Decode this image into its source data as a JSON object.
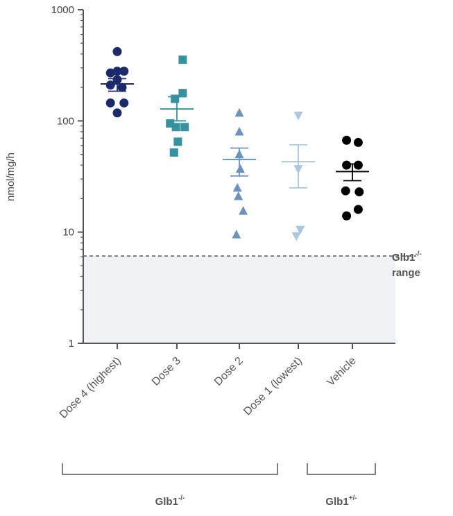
{
  "chart_data": {
    "type": "scatter",
    "title": "",
    "ylabel": "nmol/mg/h",
    "yscale": "log",
    "ylim": [
      1,
      1000
    ],
    "yticks": [
      "1",
      "10",
      "100",
      "1000"
    ],
    "categories": [
      "Dose 4 (highest)",
      "Dose 3",
      "Dose 2",
      "Dose 1 (lowest)",
      "Vehicle"
    ],
    "series": [
      {
        "name": "Dose 4 (highest)",
        "marker": "circle",
        "color": "#1b2a6b",
        "points": [
          {
            "dx": 0,
            "y": 420
          },
          {
            "dx": -0.35,
            "y": 270
          },
          {
            "dx": 0,
            "y": 280
          },
          {
            "dx": 0.35,
            "y": 280
          },
          {
            "dx": -0.35,
            "y": 210
          },
          {
            "dx": 0.25,
            "y": 200
          },
          {
            "dx": 0,
            "y": 235
          },
          {
            "dx": -0.35,
            "y": 145
          },
          {
            "dx": 0.35,
            "y": 145
          },
          {
            "dx": 0,
            "y": 118
          }
        ],
        "mean": 215,
        "sem_low": 185,
        "sem_high": 240
      },
      {
        "name": "Dose 3",
        "marker": "square",
        "color": "#35929e",
        "points": [
          {
            "dx": 0.3,
            "y": 355
          },
          {
            "dx": 0.3,
            "y": 178
          },
          {
            "dx": -0.1,
            "y": 158
          },
          {
            "dx": -0.35,
            "y": 95
          },
          {
            "dx": -0.05,
            "y": 88
          },
          {
            "dx": 0.4,
            "y": 88
          },
          {
            "dx": 0.05,
            "y": 65
          },
          {
            "dx": -0.15,
            "y": 52
          }
        ],
        "mean": 128,
        "sem_low": 100,
        "sem_high": 165
      },
      {
        "name": "Dose 2",
        "marker": "triangle-up",
        "color": "#6a93bd",
        "points": [
          {
            "dx": 0,
            "y": 118
          },
          {
            "dx": 0,
            "y": 80
          },
          {
            "dx": 0,
            "y": 50
          },
          {
            "dx": 0.05,
            "y": 37
          },
          {
            "dx": -0.1,
            "y": 25
          },
          {
            "dx": -0.05,
            "y": 21
          },
          {
            "dx": 0.2,
            "y": 15.5
          },
          {
            "dx": -0.15,
            "y": 9.5
          }
        ],
        "mean": 45,
        "sem_low": 32,
        "sem_high": 57
      },
      {
        "name": "Dose 1 (lowest)",
        "marker": "triangle-down",
        "color": "#a9c7e0",
        "points": [
          {
            "dx": 0,
            "y": 112
          },
          {
            "dx": 0,
            "y": 37
          },
          {
            "dx": 0.1,
            "y": 10.5
          },
          {
            "dx": -0.1,
            "y": 9.2
          }
        ],
        "mean": 43,
        "sem_low": 25,
        "sem_high": 61
      },
      {
        "name": "Vehicle",
        "marker": "circle",
        "color": "#000000",
        "points": [
          {
            "dx": -0.3,
            "y": 67
          },
          {
            "dx": 0.3,
            "y": 64
          },
          {
            "dx": -0.3,
            "y": 40
          },
          {
            "dx": 0.3,
            "y": 40
          },
          {
            "dx": -0.35,
            "y": 23.5
          },
          {
            "dx": 0.35,
            "y": 23
          },
          {
            "dx": -0.3,
            "y": 14
          },
          {
            "dx": 0.3,
            "y": 16
          }
        ],
        "mean": 35,
        "sem_low": 29,
        "sem_high": 41
      }
    ],
    "reference_range": {
      "upper": 6.1,
      "lower": 1,
      "label": "Glb1",
      "label_sup": "-/-",
      "label_line2": "range"
    },
    "groups": [
      {
        "label": "Glb1",
        "sup": "-/-",
        "categories": [
          "Dose 4 (highest)",
          "Dose 3",
          "Dose 2",
          "Dose 1 (lowest)"
        ]
      },
      {
        "label": "Glb1",
        "sup": "+/-",
        "categories": [
          "Vehicle"
        ]
      }
    ],
    "colors": {
      "axis": "#555555",
      "shade": "#f0f2f5",
      "dashed": "#555555"
    }
  }
}
